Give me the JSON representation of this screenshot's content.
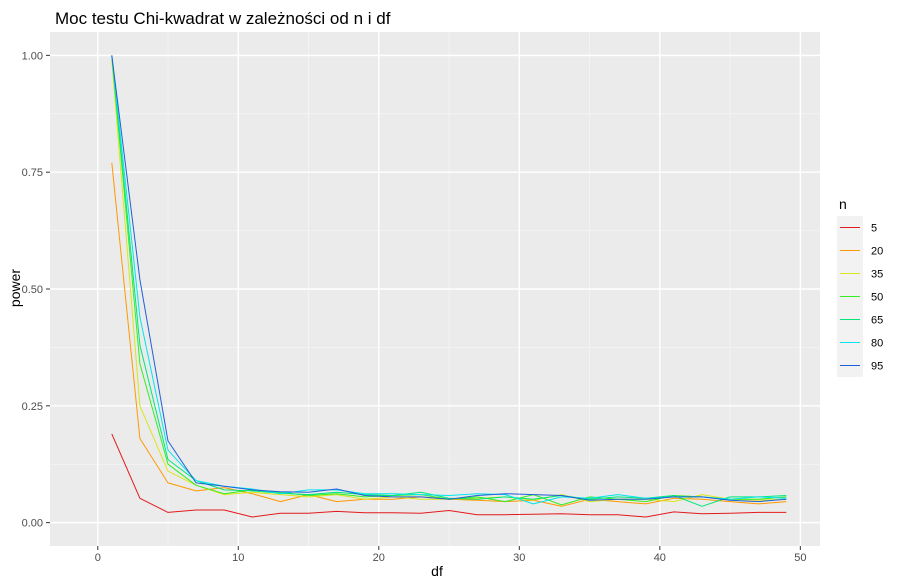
{
  "chart_data": {
    "type": "line",
    "title": "Moc testu Chi-kwadrat w zależności od n i df",
    "xlabel": "df",
    "ylabel": "power",
    "xlim": [
      -3.4,
      51.4
    ],
    "ylim": [
      -0.05,
      1.05
    ],
    "xticks": [
      0,
      10,
      20,
      30,
      40,
      50
    ],
    "yticks": [
      0.0,
      0.25,
      0.5,
      0.75,
      1.0
    ],
    "ytick_labels": [
      "0.00",
      "0.25",
      "0.50",
      "0.75",
      "1.00"
    ],
    "grid": true,
    "legend": {
      "title": "n",
      "position": "right"
    },
    "x": [
      1,
      3,
      5,
      7,
      9,
      11,
      13,
      15,
      17,
      19,
      21,
      23,
      25,
      27,
      29,
      31,
      33,
      35,
      37,
      39,
      41,
      43,
      45,
      47,
      49
    ],
    "series": [
      {
        "name": "5",
        "color": "#e31a1c",
        "values": [
          0.19,
          0.052,
          0.022,
          0.027,
          0.027,
          0.012,
          0.02,
          0.02,
          0.024,
          0.021,
          0.021,
          0.02,
          0.026,
          0.017,
          0.017,
          0.018,
          0.019,
          0.017,
          0.017,
          0.012,
          0.023,
          0.019,
          0.02,
          0.022,
          0.022
        ]
      },
      {
        "name": "20",
        "color": "#ff9900",
        "values": [
          0.77,
          0.18,
          0.085,
          0.068,
          0.075,
          0.062,
          0.045,
          0.06,
          0.045,
          0.05,
          0.05,
          0.055,
          0.05,
          0.048,
          0.045,
          0.048,
          0.035,
          0.05,
          0.045,
          0.04,
          0.052,
          0.05,
          0.045,
          0.04,
          0.045
        ]
      },
      {
        "name": "35",
        "color": "#d9e61a",
        "values": [
          0.99,
          0.25,
          0.11,
          0.08,
          0.06,
          0.065,
          0.06,
          0.055,
          0.06,
          0.05,
          0.055,
          0.05,
          0.05,
          0.052,
          0.055,
          0.048,
          0.06,
          0.045,
          0.05,
          0.05,
          0.045,
          0.06,
          0.05,
          0.048,
          0.05
        ]
      },
      {
        "name": "50",
        "color": "#33ee22",
        "values": [
          1.0,
          0.34,
          0.125,
          0.08,
          0.062,
          0.07,
          0.065,
          0.058,
          0.062,
          0.055,
          0.058,
          0.06,
          0.05,
          0.055,
          0.045,
          0.06,
          0.038,
          0.055,
          0.05,
          0.045,
          0.058,
          0.055,
          0.05,
          0.05,
          0.055
        ]
      },
      {
        "name": "65",
        "color": "#00e676",
        "values": [
          1.0,
          0.38,
          0.135,
          0.09,
          0.07,
          0.068,
          0.063,
          0.06,
          0.065,
          0.06,
          0.058,
          0.065,
          0.052,
          0.05,
          0.055,
          0.05,
          0.058,
          0.05,
          0.055,
          0.052,
          0.058,
          0.035,
          0.055,
          0.055,
          0.058
        ]
      },
      {
        "name": "80",
        "color": "#00e5ee",
        "values": [
          1.0,
          0.44,
          0.155,
          0.09,
          0.078,
          0.072,
          0.062,
          0.07,
          0.07,
          0.062,
          0.062,
          0.06,
          0.058,
          0.062,
          0.06,
          0.04,
          0.055,
          0.052,
          0.06,
          0.052,
          0.055,
          0.055,
          0.05,
          0.055,
          0.052
        ]
      },
      {
        "name": "95",
        "color": "#1f5fd6",
        "values": [
          1.0,
          0.52,
          0.175,
          0.085,
          0.078,
          0.07,
          0.066,
          0.065,
          0.072,
          0.058,
          0.055,
          0.055,
          0.05,
          0.058,
          0.062,
          0.06,
          0.058,
          0.048,
          0.05,
          0.05,
          0.055,
          0.055,
          0.048,
          0.045,
          0.05
        ]
      }
    ]
  }
}
